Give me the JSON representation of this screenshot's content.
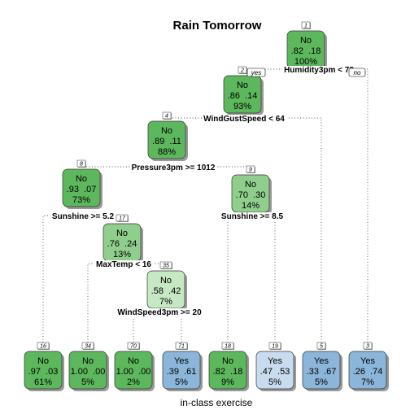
{
  "title": "Rain Tomorrow",
  "subtitle": "in-class exercise",
  "branch_labels": {
    "yes": "yes",
    "no": "no"
  },
  "colors": {
    "no_dark": "#5db85d",
    "no_mid": "#8fce8c",
    "no_light": "#c6e8c2",
    "yes_dark": "#8bb6d9",
    "yes_light": "#c9dcef"
  },
  "nodes": [
    {
      "id": "1",
      "class": "No",
      "probs": ".82  .18",
      "pct": "100%",
      "color": "no_dark"
    },
    {
      "id": "2",
      "class": "No",
      "probs": ".86  .14",
      "pct": "93%",
      "color": "no_dark"
    },
    {
      "id": "4",
      "class": "No",
      "probs": ".89  .11",
      "pct": "88%",
      "color": "no_dark"
    },
    {
      "id": "8",
      "class": "No",
      "probs": ".93  .07",
      "pct": "73%",
      "color": "no_dark"
    },
    {
      "id": "9",
      "class": "No",
      "probs": ".70  .30",
      "pct": "14%",
      "color": "no_mid"
    },
    {
      "id": "17",
      "class": "No",
      "probs": ".76  .24",
      "pct": "13%",
      "color": "no_mid"
    },
    {
      "id": "35",
      "class": "No",
      "probs": ".58  .42",
      "pct": "7%",
      "color": "no_light"
    },
    {
      "id": "16",
      "class": "No",
      "probs": ".97  .03",
      "pct": "61%",
      "color": "no_dark"
    },
    {
      "id": "34",
      "class": "No",
      "probs": "1.00  .00",
      "pct": "5%",
      "color": "no_dark"
    },
    {
      "id": "70",
      "class": "No",
      "probs": "1.00  .00",
      "pct": "2%",
      "color": "no_dark"
    },
    {
      "id": "71",
      "class": "Yes",
      "probs": ".39  .61",
      "pct": "5%",
      "color": "yes_dark"
    },
    {
      "id": "18",
      "class": "No",
      "probs": ".82  .18",
      "pct": "9%",
      "color": "no_dark"
    },
    {
      "id": "19",
      "class": "Yes",
      "probs": ".47  .53",
      "pct": "5%",
      "color": "yes_light"
    },
    {
      "id": "5",
      "class": "Yes",
      "probs": ".33  .67",
      "pct": "5%",
      "color": "yes_dark"
    },
    {
      "id": "3",
      "class": "Yes",
      "probs": ".26  .74",
      "pct": "7%",
      "color": "yes_dark"
    }
  ],
  "splits": [
    {
      "node": "1",
      "label": "Humidity3pm < 72"
    },
    {
      "node": "2",
      "label": "WindGustSpeed < 64"
    },
    {
      "node": "4",
      "label": "Pressure3pm >= 1012"
    },
    {
      "node": "8",
      "label": "Sunshine >= 5.2"
    },
    {
      "node": "9",
      "label": "Sunshine >= 8.5"
    },
    {
      "node": "17",
      "label": "MaxTemp < 16"
    },
    {
      "node": "35",
      "label": "WindSpeed3pm >= 20"
    }
  ]
}
